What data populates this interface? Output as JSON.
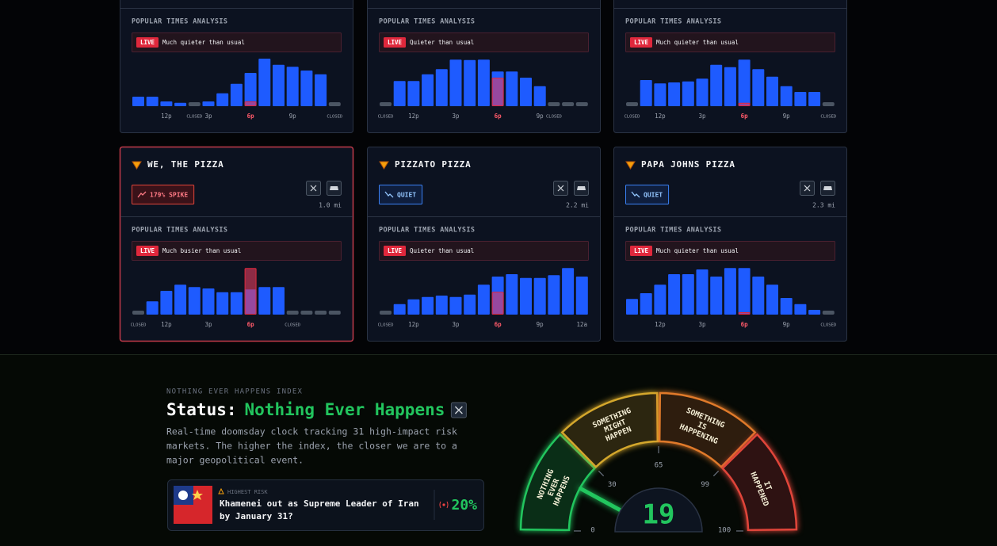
{
  "cards": [
    {
      "analysis_title": "POPULAR TIMES ANALYSIS",
      "live_badge": "LIVE",
      "live_status": "Much quieter than usual",
      "hour_labels": [
        null,
        null,
        "12p",
        null,
        "CLOSED",
        "3p",
        null,
        null,
        "6p",
        null,
        null,
        "9p",
        null,
        null,
        "CLOSED"
      ],
      "usual": [
        20,
        20,
        10,
        7,
        0,
        10,
        27,
        47,
        70,
        100,
        87,
        83,
        75,
        67,
        0
      ],
      "live_index": 8,
      "live_value": 10
    },
    {
      "analysis_title": "POPULAR TIMES ANALYSIS",
      "live_badge": "LIVE",
      "live_status": "Quieter than usual",
      "hour_labels": [
        "CLOSED",
        null,
        "12p",
        null,
        null,
        "3p",
        null,
        null,
        "6p",
        null,
        null,
        "9p",
        "CLOSED",
        null,
        null
      ],
      "usual": [
        0,
        53,
        53,
        67,
        78,
        98,
        97,
        98,
        73,
        73,
        60,
        42,
        0,
        0,
        0
      ],
      "live_index": 8,
      "live_value": 60
    },
    {
      "analysis_title": "POPULAR TIMES ANALYSIS",
      "live_badge": "LIVE",
      "live_status": "Much quieter than usual",
      "hour_labels": [
        "CLOSED",
        null,
        "12p",
        null,
        null,
        "3p",
        null,
        null,
        "6p",
        null,
        null,
        "9p",
        null,
        null,
        "CLOSED"
      ],
      "usual": [
        0,
        55,
        48,
        50,
        52,
        58,
        87,
        82,
        98,
        78,
        62,
        42,
        30,
        30,
        0
      ],
      "live_index": 8,
      "live_value": 7
    },
    {
      "name": "WE, THE PIZZA",
      "badge": "179% SPIKE",
      "trend": "up",
      "distance": "1.0 mi",
      "analysis_title": "POPULAR TIMES ANALYSIS",
      "live_badge": "LIVE",
      "live_status": "Much busier than usual",
      "hour_labels": [
        "CLOSED",
        null,
        "12p",
        null,
        null,
        "3p",
        null,
        null,
        "6p",
        null,
        null,
        "CLOSED",
        null,
        null,
        null
      ],
      "usual": [
        0,
        28,
        50,
        63,
        58,
        55,
        47,
        47,
        53,
        58,
        58,
        0,
        0,
        0,
        0
      ],
      "live_index": 8,
      "live_value": 98
    },
    {
      "name": "PIZZATO PIZZA",
      "badge": "QUIET",
      "trend": "down",
      "distance": "2.2 mi",
      "analysis_title": "POPULAR TIMES ANALYSIS",
      "live_badge": "LIVE",
      "live_status": "Quieter than usual",
      "hour_labels": [
        "CLOSED",
        null,
        "12p",
        null,
        null,
        "3p",
        null,
        null,
        "6p",
        null,
        null,
        "9p",
        null,
        null,
        "12a"
      ],
      "usual": [
        0,
        22,
        32,
        37,
        40,
        37,
        42,
        63,
        80,
        85,
        77,
        77,
        83,
        98,
        80
      ],
      "live_index": 8,
      "live_value": 48
    },
    {
      "name": "PAPA JOHNS PIZZA",
      "badge": "QUIET",
      "trend": "down",
      "distance": "2.3 mi",
      "analysis_title": "POPULAR TIMES ANALYSIS",
      "live_badge": "LIVE",
      "live_status": "Much quieter than usual",
      "hour_labels": [
        null,
        null,
        "12p",
        null,
        null,
        "3p",
        null,
        null,
        "6p",
        null,
        null,
        "9p",
        null,
        null,
        "CLOSED"
      ],
      "usual": [
        33,
        45,
        63,
        85,
        85,
        95,
        80,
        98,
        98,
        80,
        63,
        35,
        22,
        10,
        0
      ],
      "live_index": 8,
      "live_value": 5
    }
  ],
  "index": {
    "kicker": "NOTHING EVER HAPPENS INDEX",
    "status_label": "Status:",
    "status": "Nothing Ever Happens",
    "description": [
      "Real-time doomsday clock tracking 31 high-impact risk",
      "markets. The higher the index, the closer we are to a",
      "major geopolitical event."
    ],
    "highest_risk": {
      "kicker": "HIGHEST RISK",
      "question": [
        "Khamenei out as Supreme Leader of Iran",
        "by January 31?"
      ],
      "probability": "20%"
    },
    "gauge": {
      "value": 19,
      "ticks": [
        0,
        30,
        65,
        99,
        100
      ],
      "segments": [
        {
          "lines": [
            "NOTHING",
            "EVER",
            "HAPPENS"
          ],
          "color": "#22c55e"
        },
        {
          "lines": [
            "SOMETHING",
            "MIGHT",
            "HAPPEN"
          ],
          "color": "#d4a72c"
        },
        {
          "lines": [
            "SOMETHING",
            "IS",
            "HAPPENING"
          ],
          "color": "#e07a2a"
        },
        {
          "lines": [
            "IT",
            "HAPPENED"
          ],
          "color": "#e0453a"
        }
      ]
    }
  }
}
